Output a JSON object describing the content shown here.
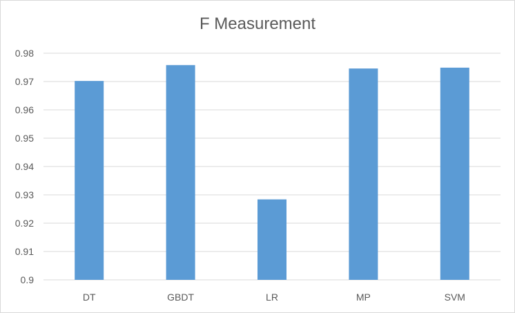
{
  "chart_data": {
    "type": "bar",
    "title": "F Measurement",
    "xlabel": "",
    "ylabel": "",
    "categories": [
      "DT",
      "GBDT",
      "LR",
      "MP",
      "SVM"
    ],
    "values": [
      0.9702,
      0.9758,
      0.9284,
      0.9746,
      0.9749
    ],
    "ylim": [
      0.9,
      0.98
    ],
    "yticks": [
      0.9,
      0.91,
      0.92,
      0.93,
      0.94,
      0.95,
      0.96,
      0.97,
      0.98
    ],
    "ytick_labels": [
      "0.9",
      "0.91",
      "0.92",
      "0.93",
      "0.94",
      "0.95",
      "0.96",
      "0.97",
      "0.98"
    ],
    "grid": true,
    "legend": "none",
    "colors": {
      "bar": "#5b9bd5",
      "grid": "#d9d9d9",
      "text": "#595959",
      "border": "#d9d9d9"
    }
  }
}
